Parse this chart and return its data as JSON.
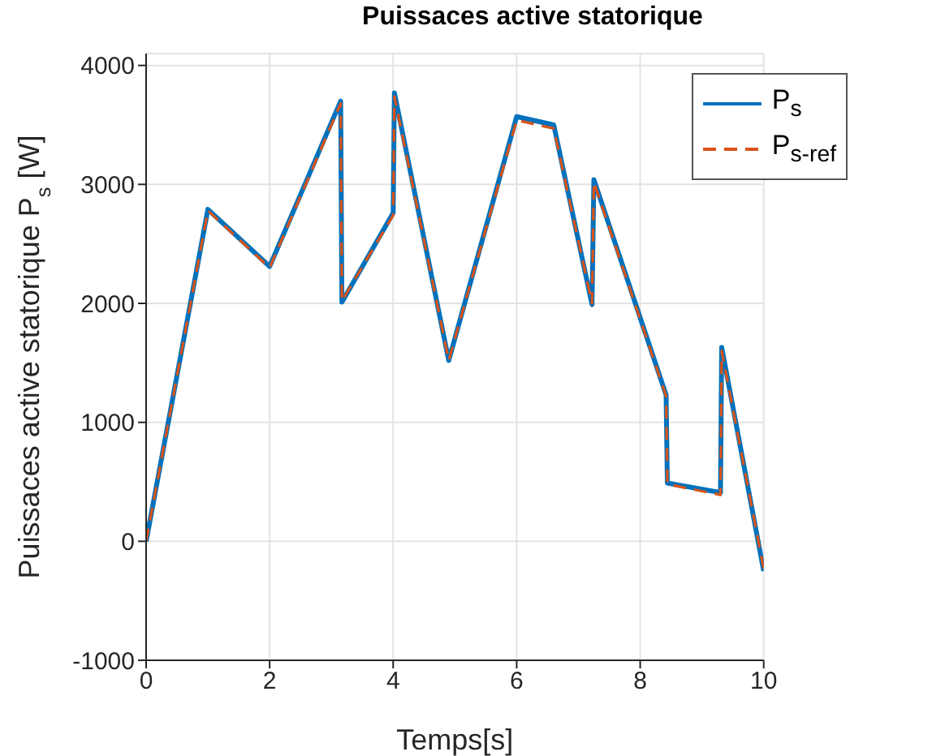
{
  "chart_data": {
    "type": "line",
    "title": "Puissaces active statorique",
    "xlabel": "Temps[s]",
    "ylabel": "Puissaces active statorique P$_{s}$  [W]",
    "x": [
      0,
      1.0,
      2.0,
      3.15,
      3.17,
      4.0,
      4.02,
      4.9,
      6.0,
      6.6,
      7.22,
      7.25,
      8.42,
      8.44,
      9.3,
      9.32,
      10
    ],
    "series": [
      {
        "name": "P$_{s}$",
        "color": "#0072bd",
        "line_style": "solid",
        "values": [
          0,
          2790,
          2310,
          3700,
          2010,
          2760,
          3770,
          1520,
          3570,
          3500,
          1990,
          3040,
          1230,
          490,
          410,
          1630,
          -250
        ]
      },
      {
        "name": "P$_{s-ref}$",
        "color": "#d95319",
        "line_style": "dashed",
        "values": [
          0,
          2780,
          2300,
          3680,
          2020,
          2740,
          3740,
          1520,
          3540,
          3470,
          2000,
          3020,
          1220,
          480,
          390,
          1600,
          -230
        ]
      }
    ],
    "xlim": [
      0,
      10
    ],
    "xticks": [
      0,
      2,
      4,
      6,
      8,
      10
    ],
    "ylim": [
      -1000,
      4100
    ],
    "yticks": [
      -1000,
      0,
      1000,
      2000,
      3000,
      4000
    ],
    "grid": true,
    "legend": "top right",
    "marker": "none"
  }
}
